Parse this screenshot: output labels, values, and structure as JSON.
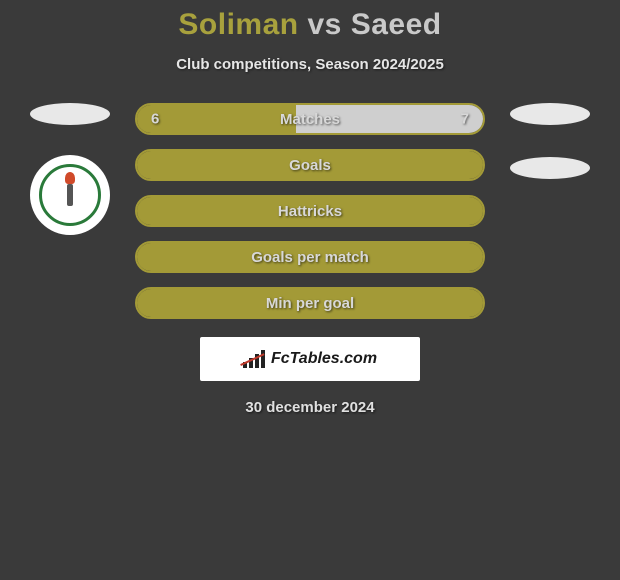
{
  "title": {
    "player1": "Soliman",
    "player1_color": "#a8a13d",
    "vs": "vs",
    "player2": "Saeed",
    "player2_color": "#c9c9c9"
  },
  "subtitle": "Club competitions, Season 2024/2025",
  "bars": [
    {
      "label": "Matches",
      "left_value": "6",
      "right_value": "7",
      "left_pct": 46,
      "right_pct": 54,
      "border_color": "#a39a37",
      "left_fill": "#a39a37",
      "right_fill": "#cfcfcf"
    },
    {
      "label": "Goals",
      "left_value": "",
      "right_value": "",
      "left_pct": 100,
      "right_pct": 0,
      "border_color": "#a39a37",
      "left_fill": "#a39a37",
      "right_fill": "#cfcfcf"
    },
    {
      "label": "Hattricks",
      "left_value": "",
      "right_value": "",
      "left_pct": 100,
      "right_pct": 0,
      "border_color": "#a39a37",
      "left_fill": "#a39a37",
      "right_fill": "#cfcfcf"
    },
    {
      "label": "Goals per match",
      "left_value": "",
      "right_value": "",
      "left_pct": 100,
      "right_pct": 0,
      "border_color": "#a39a37",
      "left_fill": "#a39a37",
      "right_fill": "#cfcfcf"
    },
    {
      "label": "Min per goal",
      "left_value": "",
      "right_value": "",
      "left_pct": 100,
      "right_pct": 0,
      "border_color": "#a39a37",
      "left_fill": "#a39a37",
      "right_fill": "#cfcfcf"
    }
  ],
  "footer_brand": "FcTables.com",
  "date": "30 december 2024",
  "side_ovals": {
    "left_count": 1,
    "right_count": 2,
    "oval_color": "#e8e8e8"
  },
  "club_badge": {
    "outer_bg": "#ffffff",
    "ring_color": "#2a7a3a",
    "flame_color": "#d04a2a"
  },
  "background_color": "#3a3a3a"
}
